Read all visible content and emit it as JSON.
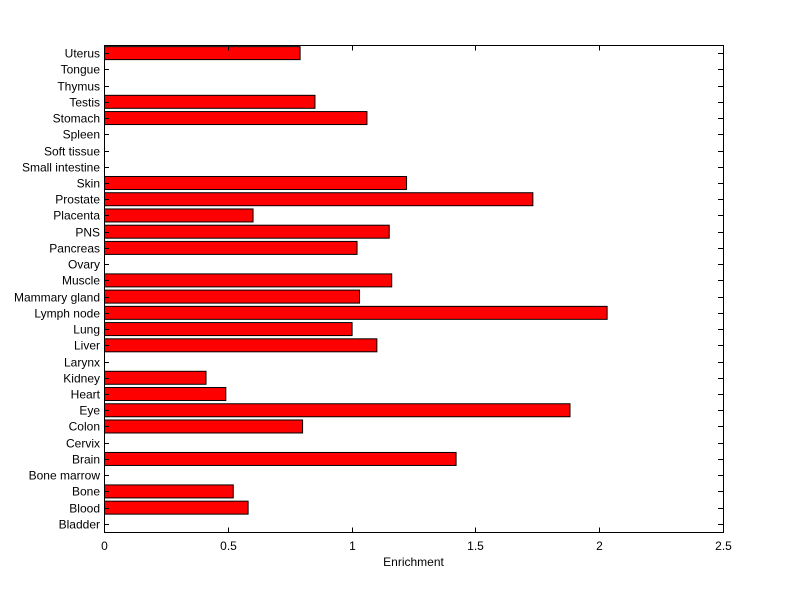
{
  "chart_data": {
    "type": "bar",
    "orientation": "horizontal",
    "xlabel": "Enrichment",
    "ylabel": "",
    "title": "",
    "xlim": [
      0,
      2.5
    ],
    "xticks": [
      "0",
      "0.5",
      "1",
      "1.5",
      "2",
      "2.5"
    ],
    "grid": false,
    "bar_color": "#ff0000",
    "categories": [
      "Bladder",
      "Blood",
      "Bone",
      "Bone marrow",
      "Brain",
      "Cervix",
      "Colon",
      "Eye",
      "Heart",
      "Kidney",
      "Larynx",
      "Liver",
      "Lung",
      "Lymph node",
      "Mammary gland",
      "Muscle",
      "Ovary",
      "Pancreas",
      "PNS",
      "Placenta",
      "Prostate",
      "Skin",
      "Small intestine",
      "Soft tissue",
      "Spleen",
      "Stomach",
      "Testis",
      "Thymus",
      "Tongue",
      "Uterus"
    ],
    "values": [
      0,
      0.58,
      0.52,
      0,
      1.42,
      0,
      0.8,
      1.88,
      0.49,
      0.41,
      0,
      1.1,
      1.0,
      2.03,
      1.03,
      1.16,
      0,
      1.02,
      1.15,
      0.6,
      1.73,
      1.22,
      0,
      0,
      0,
      1.06,
      0.85,
      0,
      0,
      0.79
    ]
  }
}
